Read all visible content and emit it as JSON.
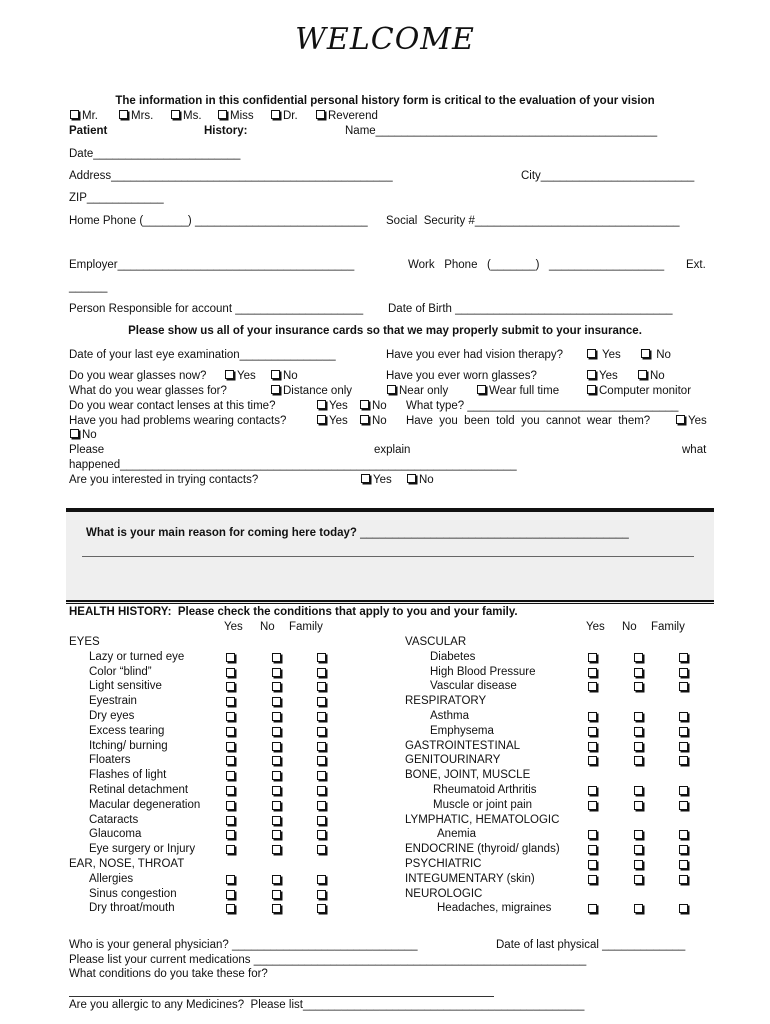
{
  "title": "WELCOME",
  "intro": "The information in this confidential personal history form is critical to the evaluation of your vision",
  "salutations": [
    "Mr.",
    "Mrs.",
    "Ms.",
    "Miss",
    "Dr.",
    "Reverend"
  ],
  "patient": {
    "patient_label": "Patient",
    "history_label": "History:",
    "name_label": "Name____________________________________________",
    "date_label": "Date_______________________",
    "address_label": "Address____________________________________________",
    "city_label": "City________________________",
    "zip_label": "ZIP____________",
    "home_phone_label": "Home Phone (_______) ___________________________",
    "ssn_label": "Social  Security #________________________________",
    "employer_label": "Employer_____________________________________",
    "work_phone_label": "Work   Phone   (_______)   __________________",
    "ext_label": "Ext.",
    "ext_line": "______",
    "responsible_label": "Person Responsible for account ____________________",
    "dob_label": "Date of Birth __________________________________"
  },
  "insurance_notice": "Please show us all of your insurance cards so that we may properly submit to your insurance.",
  "eye_questions": {
    "last_exam": "Date of your last eye examination_______________",
    "vision_therapy": "Have you ever had vision therapy?",
    "glasses_now": "Do you wear glasses now?",
    "worn_glasses": "Have you ever worn glasses?",
    "glasses_for": "What do you wear glasses for?",
    "distance_only": "Distance only",
    "near_only": "Near only",
    "full_time": "Wear full time",
    "computer": "Computer monitor",
    "contacts_now": "Do you wear contact lenses at this time?",
    "what_type": "What type? _________________________________",
    "problems_contacts": "Have you had problems wearing contacts?",
    "told_cannot": "Have  you  been  told  you  cannot  wear  them?",
    "please": "Please",
    "explain": "explain",
    "what": "what",
    "happened": "happened______________________________________________________________",
    "interested_contacts": "Are you interested in trying contacts?",
    "yes": "Yes",
    "no": "No"
  },
  "reason": {
    "question": "What is your main reason for coming here today?",
    "line": " __________________________________________"
  },
  "health_history": {
    "heading": "HEALTH HISTORY:  Please check the conditions that apply to you and your family.",
    "columns": [
      "Yes",
      "No",
      "Family"
    ],
    "left": [
      {
        "label": "EYES",
        "type": "category"
      },
      {
        "label": "Lazy or turned eye",
        "type": "condition"
      },
      {
        "label": "Color “blind”",
        "type": "condition"
      },
      {
        "label": "Light sensitive",
        "type": "condition"
      },
      {
        "label": "Eyestrain",
        "type": "condition"
      },
      {
        "label": "Dry eyes",
        "type": "condition"
      },
      {
        "label": "Excess tearing",
        "type": "condition"
      },
      {
        "label": "Itching/ burning",
        "type": "condition"
      },
      {
        "label": "Floaters",
        "type": "condition"
      },
      {
        "label": "Flashes of light",
        "type": "condition"
      },
      {
        "label": "Retinal detachment",
        "type": "condition"
      },
      {
        "label": "Macular degeneration",
        "type": "condition"
      },
      {
        "label": "Cataracts",
        "type": "condition"
      },
      {
        "label": "Glaucoma",
        "type": "condition"
      },
      {
        "label": "Eye surgery or Injury",
        "type": "condition"
      },
      {
        "label": "EAR, NOSE, THROAT",
        "type": "category"
      },
      {
        "label": "Allergies",
        "type": "condition"
      },
      {
        "label": "Sinus congestion",
        "type": "condition"
      },
      {
        "label": "Dry throat/mouth",
        "type": "condition"
      }
    ],
    "right": [
      {
        "label": "VASCULAR",
        "type": "category"
      },
      {
        "label": "Diabetes",
        "type": "condition"
      },
      {
        "label": "High Blood Pressure",
        "type": "condition"
      },
      {
        "label": "Vascular disease",
        "type": "condition"
      },
      {
        "label": "RESPIRATORY",
        "type": "category"
      },
      {
        "label": "Asthma",
        "type": "condition"
      },
      {
        "label": "Emphysema",
        "type": "condition"
      },
      {
        "label": "GASTROINTESTINAL",
        "type": "category-checkable"
      },
      {
        "label": "GENITOURINARY",
        "type": "category-checkable"
      },
      {
        "label": "BONE, JOINT, MUSCLE",
        "type": "category"
      },
      {
        "label": "Rheumatoid Arthritis",
        "type": "condition"
      },
      {
        "label": "Muscle or joint pain",
        "type": "condition"
      },
      {
        "label": "LYMPHATIC, HEMATOLOGIC",
        "type": "category"
      },
      {
        "label": "Anemia",
        "type": "condition"
      },
      {
        "label": "ENDOCRINE (thyroid/ glands)",
        "type": "category-checkable"
      },
      {
        "label": "PSYCHIATRIC",
        "type": "category-checkable"
      },
      {
        "label": "INTEGUMENTARY (skin)",
        "type": "category-checkable"
      },
      {
        "label": "NEUROLOGIC",
        "type": "category"
      },
      {
        "label": "Headaches, migraines",
        "type": "condition"
      }
    ]
  },
  "footer": {
    "physician": "Who is your general physician? _____________________________",
    "last_physical": "Date of last physical _____________",
    "medications": "Please list your current medications ____________________________________________________",
    "conditions": "What conditions do you take these for?",
    "allergic": "Are you allergic to any Medicines?  Please list____________________________________________"
  }
}
